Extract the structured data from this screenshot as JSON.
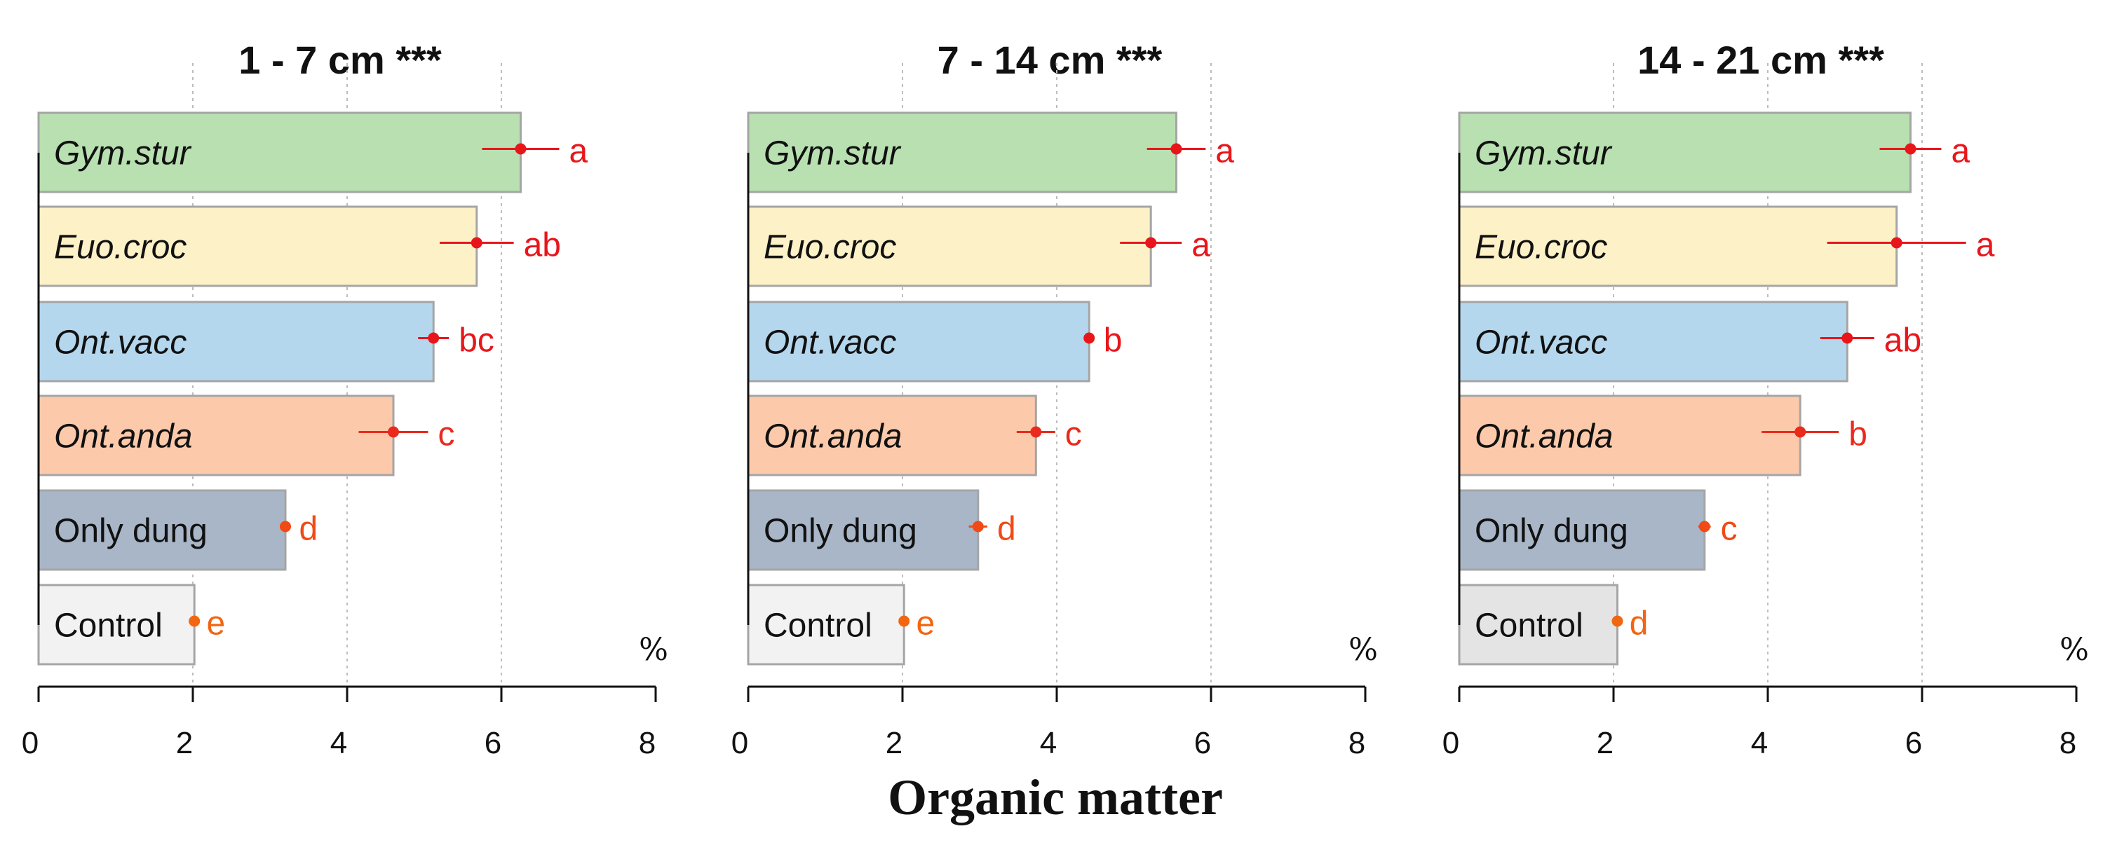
{
  "chart_data": {
    "type": "bar",
    "orientation": "horizontal",
    "xlabel": "Organic matter",
    "unit": "%",
    "xlim": [
      0,
      8
    ],
    "xticks": [
      0,
      2,
      4,
      6,
      8
    ],
    "grid": "vertical dotted",
    "panels": [
      {
        "title": "1 - 7 cm ***",
        "bars": [
          {
            "label": "Gym.stur",
            "italic": true,
            "value": 6.25,
            "err": 0.5,
            "sig": "a",
            "color": "#b8e0b0",
            "point_color": "#e8161b"
          },
          {
            "label": "Euo.croc",
            "italic": true,
            "value": 5.68,
            "err": 0.48,
            "sig": "ab",
            "color": "#fdf1c8",
            "point_color": "#e8161b"
          },
          {
            "label": "Ont.vacc",
            "italic": true,
            "value": 5.12,
            "err": 0.2,
            "sig": "bc",
            "color": "#b5d7ee",
            "point_color": "#e8161b"
          },
          {
            "label": "Ont.anda",
            "italic": true,
            "value": 4.6,
            "err": 0.45,
            "sig": "c",
            "color": "#fccaab",
            "point_color": "#ea2a1c"
          },
          {
            "label": "Only dung",
            "italic": false,
            "value": 3.2,
            "err": 0.05,
            "sig": "d",
            "color": "#a8b6c8",
            "point_color": "#f04a16"
          },
          {
            "label": "Control",
            "italic": false,
            "value": 2.02,
            "err": 0.03,
            "sig": "e",
            "color": "#f2f2f2",
            "point_color": "#f26511"
          }
        ]
      },
      {
        "title": "7 - 14 cm ***",
        "bars": [
          {
            "label": "Gym.stur",
            "italic": true,
            "value": 5.55,
            "err": 0.38,
            "sig": "a",
            "color": "#b8e0b0",
            "point_color": "#e8161b"
          },
          {
            "label": "Euo.croc",
            "italic": true,
            "value": 5.22,
            "err": 0.4,
            "sig": "a",
            "color": "#fdf1c8",
            "point_color": "#e8161b"
          },
          {
            "label": "Ont.vacc",
            "italic": true,
            "value": 4.42,
            "err": 0.06,
            "sig": "b",
            "color": "#b5d7ee",
            "point_color": "#e8161b"
          },
          {
            "label": "Ont.anda",
            "italic": true,
            "value": 3.73,
            "err": 0.25,
            "sig": "c",
            "color": "#fccaab",
            "point_color": "#ea2a1c"
          },
          {
            "label": "Only dung",
            "italic": false,
            "value": 2.98,
            "err": 0.12,
            "sig": "d",
            "color": "#a8b6c8",
            "point_color": "#f04a16"
          },
          {
            "label": "Control",
            "italic": false,
            "value": 2.02,
            "err": 0.03,
            "sig": "e",
            "color": "#f2f2f2",
            "point_color": "#f26511"
          }
        ]
      },
      {
        "title": "14 - 21 cm ***",
        "bars": [
          {
            "label": "Gym.stur",
            "italic": true,
            "value": 5.85,
            "err": 0.4,
            "sig": "a",
            "color": "#b8e0b0",
            "point_color": "#e8161b"
          },
          {
            "label": "Euo.croc",
            "italic": true,
            "value": 5.67,
            "err": 0.9,
            "sig": "a",
            "color": "#fdf1c8",
            "point_color": "#e8161b"
          },
          {
            "label": "Ont.vacc",
            "italic": true,
            "value": 5.03,
            "err": 0.35,
            "sig": "ab",
            "color": "#b5d7ee",
            "point_color": "#e8161b"
          },
          {
            "label": "Ont.anda",
            "italic": true,
            "value": 4.42,
            "err": 0.5,
            "sig": "b",
            "color": "#fccaab",
            "point_color": "#ea2a1c"
          },
          {
            "label": "Only dung",
            "italic": false,
            "value": 3.18,
            "err": 0.08,
            "sig": "c",
            "color": "#a8b6c8",
            "point_color": "#f04a16"
          },
          {
            "label": "Control",
            "italic": false,
            "value": 2.05,
            "err": 0.03,
            "sig": "d",
            "color": "#e4e4e4",
            "point_color": "#f26511"
          }
        ]
      }
    ]
  }
}
